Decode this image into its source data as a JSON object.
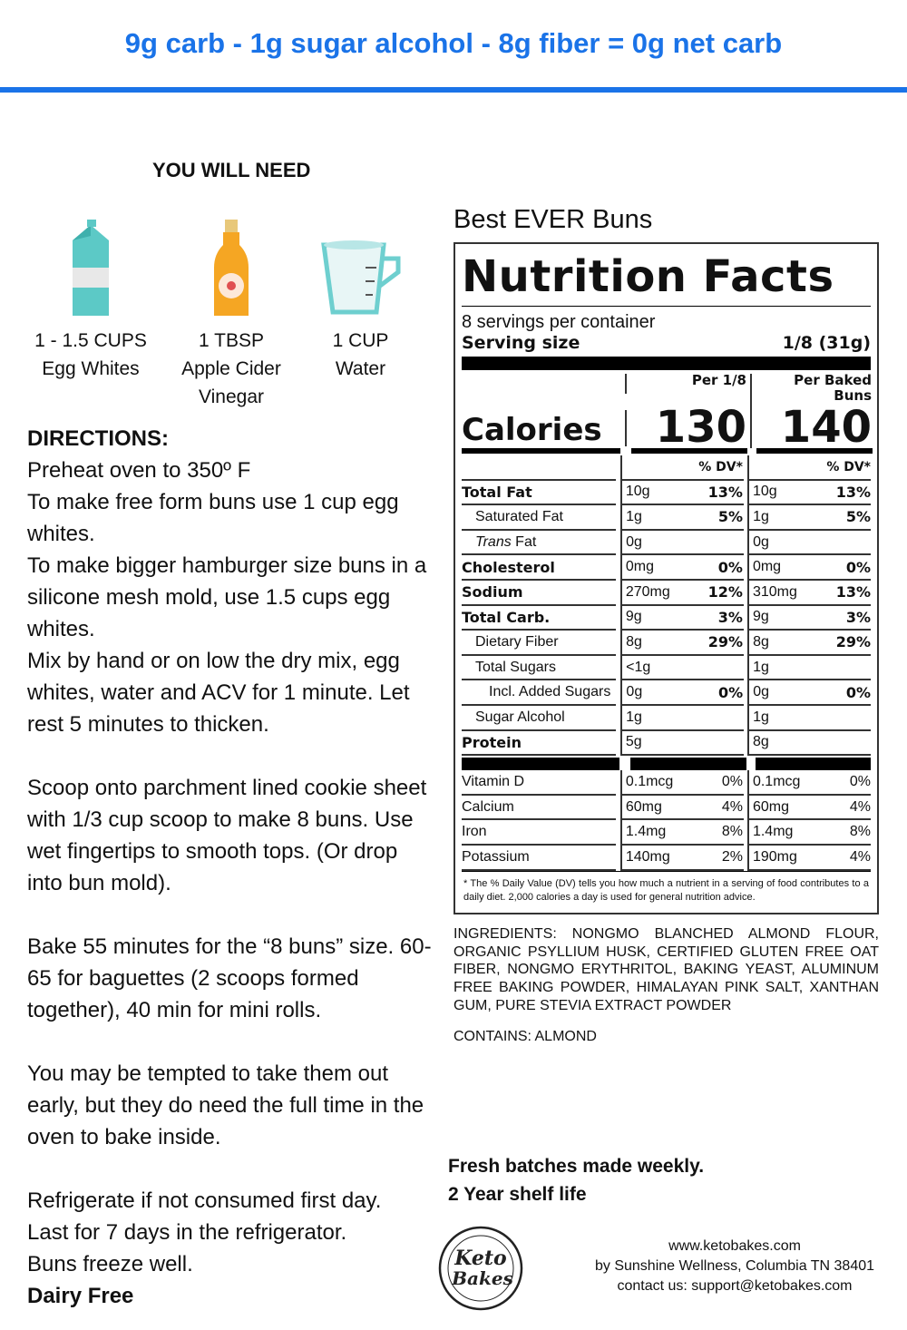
{
  "banner": "9g carb - 1g sugar alcohol - 8g fiber = 0g net carb",
  "colors": {
    "accent": "#1a73e8"
  },
  "you_will_need": "YOU WILL NEED",
  "ingredients_needed": [
    {
      "icon": "milk-carton-icon",
      "line1": "1 - 1.5 CUPS",
      "line2": "Egg Whites",
      "line3": ""
    },
    {
      "icon": "vinegar-bottle-icon",
      "line1": "1 TBSP",
      "line2": "Apple Cider",
      "line3": "Vinegar"
    },
    {
      "icon": "measuring-cup-icon",
      "line1": "1 CUP",
      "line2": "Water",
      "line3": ""
    }
  ],
  "directions": {
    "heading": "DIRECTIONS:",
    "p1": "Preheat oven to 350º F",
    "p2": "To make free form buns use 1 cup egg whites.",
    "p3": "To make bigger hamburger size buns in a silicone mesh mold, use 1.5 cups egg whites.",
    "p4": "Mix by hand or on low the dry mix, egg whites, water and ACV for 1 minute. Let rest 5 minutes to thicken.",
    "p5": "Scoop onto parchment lined cookie sheet with 1/3 cup scoop to make 8 buns. Use wet fingertips to smooth tops. (Or drop into bun mold).",
    "p6": "Bake 55 minutes for the “8 buns” size. 60-65 for baguettes (2 scoops formed together), 40 min for mini rolls.",
    "p7": "You may be tempted to take them out early, but they do need the full time in the oven to bake inside.",
    "p8": "Refrigerate if not consumed first day.",
    "p9": "Last for 7 days in the refrigerator.",
    "p10": "Buns freeze well.",
    "p11": "Dairy Free"
  },
  "product_title": "Best EVER Buns",
  "nutrition": {
    "title": "Nutrition Facts",
    "servings": "8 servings per container",
    "serving_size_label": "Serving size",
    "serving_size": "1/8 (31g)",
    "col1_header": "Per 1/8",
    "col2_header": "Per Baked Buns",
    "calories_label": "Calories",
    "calories1": "130",
    "calories2": "140",
    "dv_header": "% DV*",
    "rows": [
      {
        "label": "Total Fat",
        "style": "b",
        "v1": "10g",
        "d1": "13%",
        "v2": "10g",
        "d2": "13%"
      },
      {
        "label": "Saturated Fat",
        "style": "ind1",
        "v1": "1g",
        "d1": "5%",
        "v2": "1g",
        "d2": "5%"
      },
      {
        "label": "Fat",
        "italic": "Trans",
        "style": "ind1",
        "v1": "0g",
        "d1": "",
        "v2": "0g",
        "d2": ""
      },
      {
        "label": "Cholesterol",
        "style": "b",
        "v1": "0mg",
        "d1": "0%",
        "v2": "0mg",
        "d2": "0%"
      },
      {
        "label": "Sodium",
        "style": "b",
        "v1": "270mg",
        "d1": "12%",
        "v2": "310mg",
        "d2": "13%"
      },
      {
        "label": "Total Carb.",
        "style": "b",
        "v1": "9g",
        "d1": "3%",
        "v2": "9g",
        "d2": "3%"
      },
      {
        "label": "Dietary Fiber",
        "style": "ind1",
        "v1": "8g",
        "d1": "29%",
        "v2": "8g",
        "d2": "29%"
      },
      {
        "label": "Total Sugars",
        "style": "ind1",
        "v1": "<1g",
        "d1": "",
        "v2": "1g",
        "d2": ""
      },
      {
        "label": "Incl. Added Sugars",
        "style": "ind2",
        "v1": "0g",
        "d1": "0%",
        "v2": "0g",
        "d2": "0%"
      },
      {
        "label": "Sugar Alcohol",
        "style": "ind1",
        "v1": "1g",
        "d1": "",
        "v2": "1g",
        "d2": ""
      },
      {
        "label": "Protein",
        "style": "b",
        "v1": "5g",
        "d1": "",
        "v2": "8g",
        "d2": ""
      }
    ],
    "vitamins": [
      {
        "label": "Vitamin D",
        "v1": "0.1mcg",
        "d1": "0%",
        "v2": "0.1mcg",
        "d2": "0%"
      },
      {
        "label": "Calcium",
        "v1": "60mg",
        "d1": "4%",
        "v2": "60mg",
        "d2": "4%"
      },
      {
        "label": "Iron",
        "v1": "1.4mg",
        "d1": "8%",
        "v2": "1.4mg",
        "d2": "8%"
      },
      {
        "label": "Potassium",
        "v1": "140mg",
        "d1": "2%",
        "v2": "190mg",
        "d2": "4%"
      }
    ],
    "footnote": "* The % Daily Value (DV) tells you how much a nutrient in a serving of food contributes to a daily diet. 2,000 calories a day is used for general nutrition advice."
  },
  "ingredients": "INGREDIENTS: NONGMO BLANCHED ALMOND FLOUR, ORGANIC PSYLLIUM HUSK, CERTIFIED GLUTEN FREE OAT FIBER, NONGMO ERYTHRITOL, BAKING YEAST, ALUMINUM FREE BAKING POWDER, HIMALAYAN PINK SALT, XANTHAN GUM, PURE STEVIA EXTRACT POWDER",
  "contains": "CONTAINS: ALMOND",
  "fresh": "Fresh batches made weekly.",
  "shelf": "2 Year shelf life",
  "logo_text": "Keto Bakes · LOW CARB GOODNESS · GLUTEN FREE · GRAIN FREE · SUGAR FREE",
  "contact": {
    "website": "www.ketobakes.com",
    "by": "by Sunshine Wellness, Columbia TN 38401",
    "email": "contact us: support@ketobakes.com"
  }
}
